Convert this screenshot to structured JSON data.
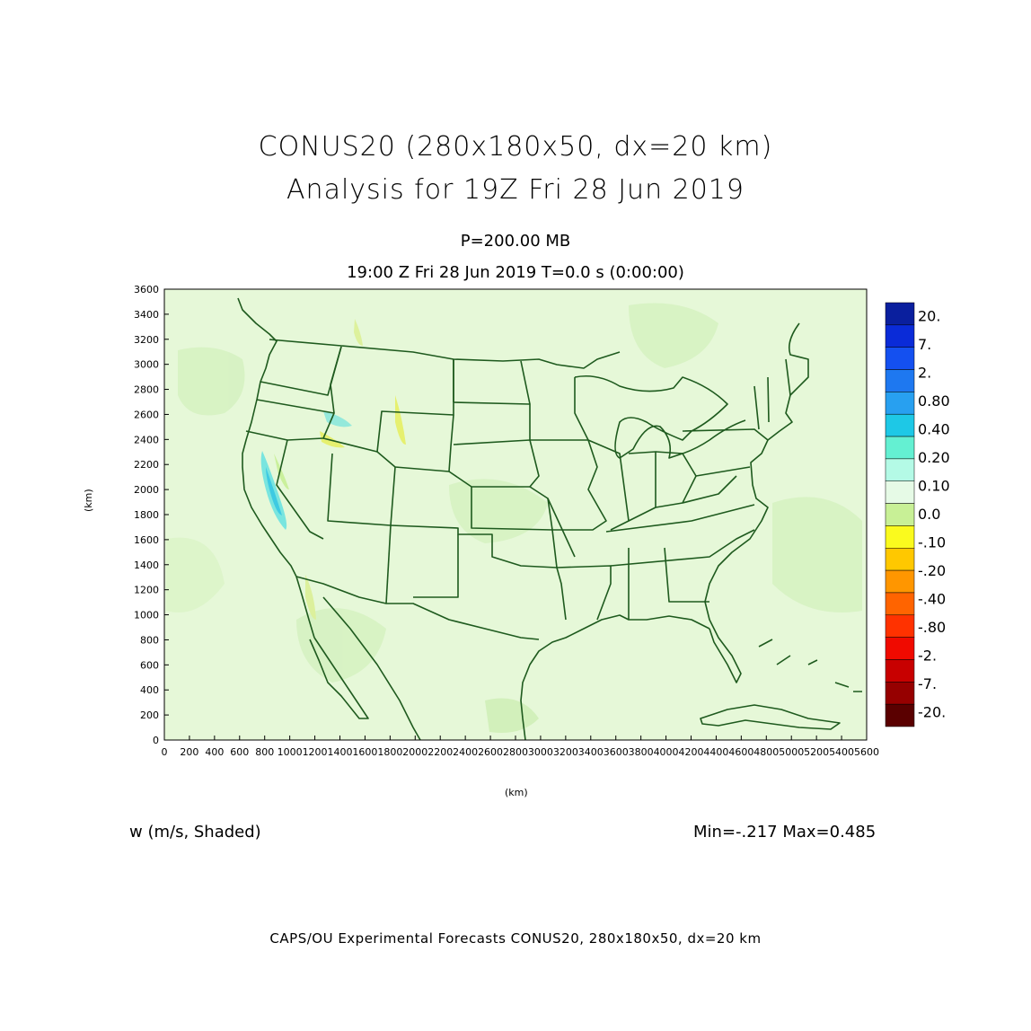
{
  "title": {
    "line1": "CONUS20 (280x180x50, dx=20 km)",
    "line2": "Analysis for 19Z Fri 28 Jun 2019"
  },
  "level": "P=200.00 MB",
  "valid_time": "19:00 Z Fri 28 Jun 2019    T=0.0 s (0:00:00)",
  "axes": {
    "ylabel": "(km)",
    "xlabel": "(km)",
    "yticks": [
      "0",
      "200",
      "400",
      "600",
      "800",
      "1000",
      "1200",
      "1400",
      "1600",
      "1800",
      "2000",
      "2200",
      "2400",
      "2600",
      "2800",
      "3000",
      "3200",
      "3400",
      "3600"
    ],
    "xticks": [
      "0",
      "200",
      "400",
      "600",
      "800",
      "1000",
      "1200",
      "1400",
      "1600",
      "1800",
      "2000",
      "2200",
      "2400",
      "2600",
      "2800",
      "3000",
      "3200",
      "3400",
      "3600",
      "3800",
      "4000",
      "4200",
      "4400",
      "4600",
      "4800",
      "5000",
      "5200",
      "5400",
      "5600"
    ],
    "xlim": [
      0,
      5600
    ],
    "ylim": [
      0,
      3600
    ]
  },
  "colorbar": {
    "labels": [
      "20.",
      "7.",
      "2.",
      "0.80",
      "0.40",
      "0.20",
      "0.10",
      "0.0",
      "-.10",
      "-.20",
      "-.40",
      "-.80",
      "-2.",
      "-7.",
      "-20."
    ],
    "colors": [
      "#0a1f9e",
      "#0a2bd8",
      "#1450f0",
      "#1e78f0",
      "#28a0f0",
      "#1ec8e6",
      "#64f0d2",
      "#b4fae6",
      "#e6fae6",
      "#c8f096",
      "#fafa1e",
      "#ffc800",
      "#ff9600",
      "#ff6400",
      "#ff3200",
      "#f00a00",
      "#c80000",
      "#960000",
      "#5a0000"
    ]
  },
  "variable_label": "w (m/s, Shaded)",
  "minmax": "Min=-.217 Max=0.485",
  "footer": "CAPS/OU Experimental Forecasts  CONUS20, 280x180x50, dx=20 km",
  "map": {
    "background_color": "#e4f7d8",
    "boundary_color": "#1e5a1e"
  }
}
